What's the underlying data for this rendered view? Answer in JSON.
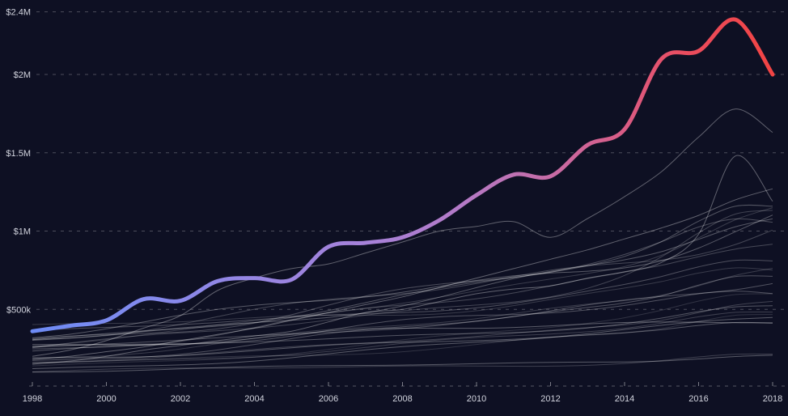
{
  "chart_data": {
    "type": "line",
    "title": "",
    "xlabel": "",
    "ylabel": "",
    "grid": "dashed horizontal gridlines, dashed baseline",
    "legend": "none",
    "x": [
      1998,
      1999,
      2000,
      2001,
      2002,
      2003,
      2004,
      2005,
      2006,
      2007,
      2008,
      2009,
      2010,
      2011,
      2012,
      2013,
      2014,
      2015,
      2016,
      2017,
      2018
    ],
    "x_tick_labels": [
      "1998",
      "2000",
      "2002",
      "2004",
      "2006",
      "2008",
      "2010",
      "2012",
      "2014",
      "2016",
      "2018"
    ],
    "x_tick_years": [
      1998,
      2000,
      2002,
      2004,
      2006,
      2008,
      2010,
      2012,
      2014,
      2016,
      2018
    ],
    "y_ticks": [
      {
        "label": "$2.4M",
        "value": 2400000
      },
      {
        "label": "$2M",
        "value": 2000000
      },
      {
        "label": "$1.5M",
        "value": 1500000
      },
      {
        "label": "$1M",
        "value": 1000000
      },
      {
        "label": "$500k",
        "value": 500000
      }
    ],
    "ylim": [
      0,
      2480000
    ],
    "xlim": [
      1998,
      2018
    ],
    "series": [
      {
        "name": "highlighted-series",
        "role": "main",
        "stroke": "gradient",
        "values_usd": [
          360000,
          395000,
          430000,
          565000,
          555000,
          680000,
          700000,
          690000,
          900000,
          925000,
          960000,
          1070000,
          1230000,
          1360000,
          1350000,
          1550000,
          1650000,
          2100000,
          2150000,
          2350000,
          2000000
        ]
      },
      {
        "name": "peer-top",
        "role": "secondary",
        "stroke": "faint-white",
        "values_usd": [
          200000,
          240000,
          300000,
          380000,
          460000,
          620000,
          700000,
          760000,
          790000,
          860000,
          930000,
          1000000,
          1030000,
          1060000,
          960000,
          1080000,
          1220000,
          1380000,
          1600000,
          1780000,
          1630000
        ]
      },
      {
        "name": "peer-spike",
        "role": "secondary",
        "stroke": "faint-white",
        "values_usd": [
          150000,
          170000,
          200000,
          240000,
          270000,
          300000,
          330000,
          360000,
          420000,
          480000,
          500000,
          550000,
          600000,
          630000,
          650000,
          700000,
          740000,
          800000,
          980000,
          1480000,
          1190000
        ]
      },
      {
        "name": "peer-steady",
        "role": "secondary",
        "stroke": "faint-white",
        "values_usd": [
          180000,
          200000,
          230000,
          260000,
          300000,
          340000,
          380000,
          430000,
          480000,
          530000,
          580000,
          640000,
          700000,
          760000,
          820000,
          880000,
          950000,
          1020000,
          1100000,
          1200000,
          1270000
        ]
      }
    ],
    "background_series": {
      "count": 24,
      "description": "unlabeled thin comparison lines forming a rising band (procedurally approximated)",
      "start_range_usd": [
        100000,
        380000
      ],
      "end_range_usd": [
        250000,
        1050000
      ],
      "seed": 7
    }
  },
  "style": {
    "background": "#0e1023",
    "grid_color": "rgba(255,255,255,0.26)",
    "axis_color": "rgba(255,255,255,0.30)",
    "tick_color": "rgba(255,255,255,0.45)",
    "label_color": "#d2d4de",
    "peer_line_color": "rgba(255,255,255,0.34)",
    "band_line_color": "#ffffff",
    "main_line_width": 5,
    "main_gradient": [
      [
        "0",
        "#6d8bf5"
      ],
      [
        "0.12",
        "#7f8bef"
      ],
      [
        "0.28",
        "#9486e4"
      ],
      [
        "0.45",
        "#a682d9"
      ],
      [
        "0.58",
        "#b47ac7"
      ],
      [
        "0.70",
        "#c76ca6"
      ],
      [
        "0.80",
        "#da5c85"
      ],
      [
        "0.88",
        "#ea4d5f"
      ],
      [
        "1",
        "#f24444"
      ]
    ]
  }
}
